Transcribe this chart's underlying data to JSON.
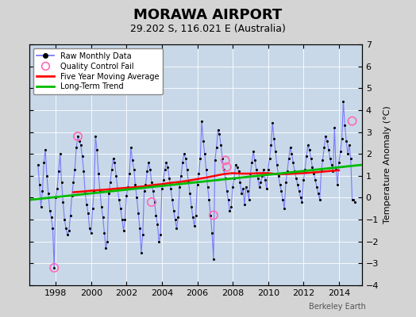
{
  "title": "MORAWA AIRPORT",
  "subtitle": "29.202 S, 116.021 E (Australia)",
  "ylabel": "Temperature Anomaly (°C)",
  "credit": "Berkeley Earth",
  "bg_color": "#d4d4d4",
  "plot_bg_color": "#c8d8e8",
  "ylim": [
    -4,
    7
  ],
  "xlim": [
    1996.5,
    2015.3
  ],
  "yticks": [
    -4,
    -3,
    -2,
    -1,
    0,
    1,
    2,
    3,
    4,
    5,
    6,
    7
  ],
  "xticks": [
    1998,
    2000,
    2002,
    2004,
    2006,
    2008,
    2010,
    2012,
    2014
  ],
  "raw_monthly_x": [
    1997.0,
    1997.083,
    1997.167,
    1997.25,
    1997.333,
    1997.417,
    1997.5,
    1997.583,
    1997.667,
    1997.75,
    1997.833,
    1997.917,
    1998.0,
    1998.083,
    1998.167,
    1998.25,
    1998.333,
    1998.417,
    1998.5,
    1998.583,
    1998.667,
    1998.75,
    1998.833,
    1998.917,
    1999.0,
    1999.083,
    1999.167,
    1999.25,
    1999.333,
    1999.417,
    1999.5,
    1999.583,
    1999.667,
    1999.75,
    1999.833,
    1999.917,
    2000.0,
    2000.083,
    2000.167,
    2000.25,
    2000.333,
    2000.417,
    2000.5,
    2000.583,
    2000.667,
    2000.75,
    2000.833,
    2000.917,
    2001.0,
    2001.083,
    2001.167,
    2001.25,
    2001.333,
    2001.417,
    2001.5,
    2001.583,
    2001.667,
    2001.75,
    2001.833,
    2001.917,
    2002.0,
    2002.083,
    2002.167,
    2002.25,
    2002.333,
    2002.417,
    2002.5,
    2002.583,
    2002.667,
    2002.75,
    2002.833,
    2002.917,
    2003.0,
    2003.083,
    2003.167,
    2003.25,
    2003.333,
    2003.417,
    2003.5,
    2003.583,
    2003.667,
    2003.75,
    2003.833,
    2003.917,
    2004.0,
    2004.083,
    2004.167,
    2004.25,
    2004.333,
    2004.417,
    2004.5,
    2004.583,
    2004.667,
    2004.75,
    2004.833,
    2004.917,
    2005.0,
    2005.083,
    2005.167,
    2005.25,
    2005.333,
    2005.417,
    2005.5,
    2005.583,
    2005.667,
    2005.75,
    2005.833,
    2005.917,
    2006.0,
    2006.083,
    2006.167,
    2006.25,
    2006.333,
    2006.417,
    2006.5,
    2006.583,
    2006.667,
    2006.75,
    2006.833,
    2006.917,
    2007.0,
    2007.083,
    2007.167,
    2007.25,
    2007.333,
    2007.417,
    2007.5,
    2007.583,
    2007.667,
    2007.75,
    2007.833,
    2007.917,
    2008.0,
    2008.083,
    2008.167,
    2008.25,
    2008.333,
    2008.417,
    2008.5,
    2008.583,
    2008.667,
    2008.75,
    2008.833,
    2008.917,
    2009.0,
    2009.083,
    2009.167,
    2009.25,
    2009.333,
    2009.417,
    2009.5,
    2009.583,
    2009.667,
    2009.75,
    2009.833,
    2009.917,
    2010.0,
    2010.083,
    2010.167,
    2010.25,
    2010.333,
    2010.417,
    2010.5,
    2010.583,
    2010.667,
    2010.75,
    2010.833,
    2010.917,
    2011.0,
    2011.083,
    2011.167,
    2011.25,
    2011.333,
    2011.417,
    2011.5,
    2011.583,
    2011.667,
    2011.75,
    2011.833,
    2011.917,
    2012.0,
    2012.083,
    2012.167,
    2012.25,
    2012.333,
    2012.417,
    2012.5,
    2012.583,
    2012.667,
    2012.75,
    2012.833,
    2012.917,
    2013.0,
    2013.083,
    2013.167,
    2013.25,
    2013.333,
    2013.417,
    2013.5,
    2013.583,
    2013.667,
    2013.75,
    2013.833,
    2013.917,
    2014.0,
    2014.083,
    2014.167,
    2014.25,
    2014.333,
    2014.417,
    2014.5,
    2014.583,
    2014.667,
    2014.75,
    2014.833,
    2014.917
  ],
  "raw_monthly_y": [
    1.5,
    0.6,
    -0.4,
    0.3,
    1.6,
    2.2,
    1.0,
    0.2,
    -0.6,
    -0.9,
    -1.4,
    -3.2,
    0.0,
    0.4,
    1.2,
    2.0,
    0.7,
    -0.2,
    -1.0,
    -1.4,
    -1.7,
    -1.5,
    -0.8,
    0.1,
    0.7,
    1.3,
    2.3,
    2.8,
    2.6,
    2.4,
    1.9,
    1.2,
    0.2,
    -0.3,
    -0.7,
    -1.4,
    -1.6,
    -0.5,
    0.3,
    2.8,
    2.2,
    1.1,
    0.3,
    -0.4,
    -0.9,
    -1.6,
    -2.3,
    -2.0,
    0.2,
    0.7,
    1.3,
    1.8,
    1.6,
    1.0,
    0.4,
    -0.1,
    -0.5,
    -1.0,
    -1.5,
    -1.0,
    0.1,
    0.5,
    1.1,
    2.3,
    1.7,
    1.3,
    0.6,
    0.0,
    -0.7,
    -1.4,
    -2.5,
    -1.7,
    0.3,
    0.6,
    1.2,
    1.6,
    1.3,
    0.7,
    0.3,
    -0.2,
    -0.8,
    -1.2,
    -2.0,
    -1.7,
    0.4,
    0.8,
    1.3,
    1.6,
    1.4,
    0.9,
    0.4,
    -0.1,
    -0.6,
    -1.0,
    -1.4,
    -0.9,
    0.5,
    1.0,
    1.6,
    2.0,
    1.8,
    1.3,
    0.7,
    0.2,
    -0.4,
    -0.9,
    -1.3,
    -0.8,
    0.6,
    1.1,
    1.8,
    3.5,
    2.6,
    2.0,
    1.3,
    0.5,
    -0.1,
    -0.8,
    -1.6,
    -2.8,
    1.7,
    2.3,
    3.1,
    2.9,
    2.4,
    1.8,
    1.3,
    0.9,
    0.3,
    -0.1,
    -0.6,
    -0.4,
    0.5,
    0.9,
    1.5,
    1.4,
    1.2,
    0.7,
    0.2,
    0.4,
    -0.3,
    0.5,
    0.3,
    -0.1,
    1.1,
    1.6,
    2.1,
    1.7,
    1.3,
    0.9,
    0.5,
    0.7,
    1.0,
    1.3,
    0.8,
    0.4,
    1.3,
    1.8,
    2.4,
    3.4,
    2.7,
    2.1,
    1.5,
    1.0,
    0.6,
    0.3,
    -0.1,
    -0.5,
    0.7,
    1.2,
    1.8,
    2.3,
    2.0,
    1.6,
    1.2,
    0.9,
    0.6,
    0.3,
    0.0,
    -0.2,
    0.8,
    1.3,
    1.9,
    2.4,
    2.2,
    1.8,
    1.4,
    1.1,
    0.8,
    0.5,
    0.2,
    -0.1,
    1.2,
    1.7,
    2.3,
    2.8,
    2.6,
    2.2,
    1.8,
    1.5,
    1.2,
    3.2,
    1.3,
    0.6,
    1.6,
    2.1,
    2.7,
    4.4,
    3.3,
    2.6,
    2.0,
    2.4,
    1.8,
    -0.1,
    -0.1,
    -0.2
  ],
  "quality_fail_x": [
    1997.917,
    1999.25,
    2003.417,
    2006.917,
    2007.583,
    2007.667,
    2014.75
  ],
  "quality_fail_y": [
    -3.2,
    2.8,
    -0.2,
    -0.8,
    1.7,
    1.4,
    3.5
  ],
  "moving_avg_x": [
    1999.0,
    1999.5,
    2000.0,
    2000.5,
    2001.0,
    2001.5,
    2002.0,
    2002.5,
    2003.0,
    2003.5,
    2004.0,
    2004.5,
    2005.0,
    2005.5,
    2006.0,
    2006.5,
    2007.0,
    2007.5,
    2008.0,
    2008.5,
    2009.0,
    2009.5,
    2010.0,
    2010.5,
    2011.0,
    2011.5,
    2012.0,
    2012.5,
    2013.0,
    2013.5,
    2014.0
  ],
  "moving_avg_y": [
    0.25,
    0.28,
    0.32,
    0.35,
    0.38,
    0.42,
    0.45,
    0.48,
    0.52,
    0.58,
    0.62,
    0.68,
    0.72,
    0.78,
    0.85,
    0.92,
    1.0,
    1.08,
    1.12,
    1.1,
    1.1,
    1.12,
    1.12,
    1.08,
    1.08,
    1.1,
    1.12,
    1.15,
    1.18,
    1.22,
    1.25
  ],
  "trend_x": [
    1996.5,
    2015.3
  ],
  "trend_y": [
    -0.1,
    1.5
  ],
  "line_color": "#7070ff",
  "dot_color": "#000000",
  "qc_color": "#ff69b4",
  "ma_color": "#ff0000",
  "trend_color": "#00bb00",
  "grid_color": "#ffffff",
  "legend_bg": "#ffffff",
  "title_fontsize": 13,
  "subtitle_fontsize": 9,
  "tick_fontsize": 8,
  "ylabel_fontsize": 8
}
